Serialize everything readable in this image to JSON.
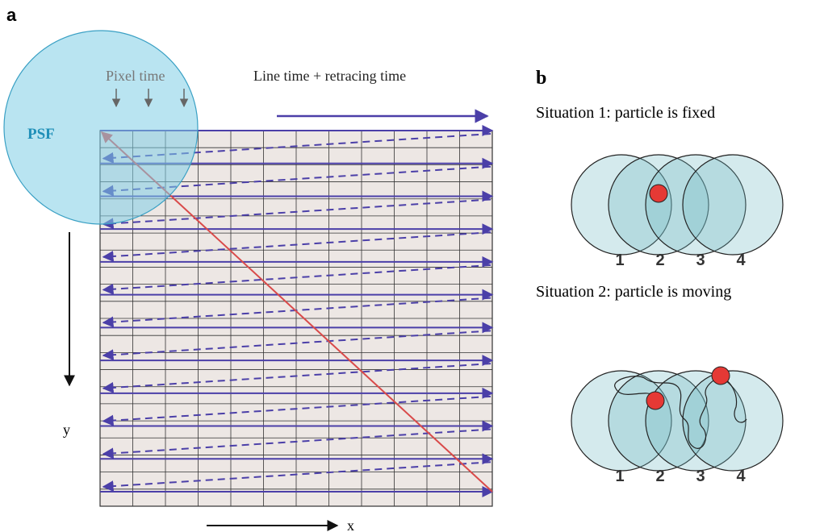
{
  "panel_a": {
    "label": "a",
    "pixel_time": "Pixel time",
    "line_time": "Line time + retracing time",
    "psf": "PSF",
    "y_axis": "y",
    "x_axis": "x"
  },
  "panel_b": {
    "label": "b",
    "situations": [
      {
        "title": "Situation 1: particle is fixed",
        "positions": [
          "1",
          "2",
          "3",
          "4"
        ]
      },
      {
        "title": "Situation 2: particle is moving",
        "positions": [
          "1",
          "2",
          "3",
          "4"
        ]
      }
    ]
  }
}
